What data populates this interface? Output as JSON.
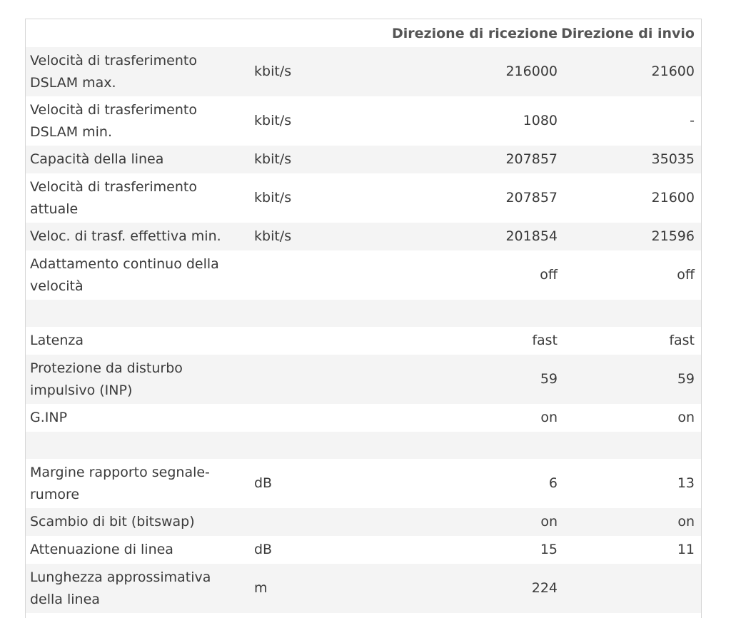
{
  "header": {
    "rx_label": "Direzione di ricezione",
    "tx_label": "Direzione di invio"
  },
  "rows": [
    {
      "label": "Velocità di trasferimento DSLAM max.",
      "unit": "kbit/s",
      "rx": "216000",
      "tx": "21600"
    },
    {
      "label": "Velocità di trasferimento DSLAM min.",
      "unit": "kbit/s",
      "rx": "1080",
      "tx": "-"
    },
    {
      "label": "Capacità della linea",
      "unit": "kbit/s",
      "rx": "207857",
      "tx": "35035"
    },
    {
      "label": "Velocità di trasferimento attuale",
      "unit": "kbit/s",
      "rx": "207857",
      "tx": "21600"
    },
    {
      "label": "Veloc. di trasf. effettiva min.",
      "unit": "kbit/s",
      "rx": "201854",
      "tx": "21596"
    },
    {
      "label": "Adattamento continuo della velocità",
      "unit": "",
      "rx": "off",
      "tx": "off"
    },
    {
      "label": "Latenza",
      "unit": "",
      "rx": "fast",
      "tx": "fast"
    },
    {
      "label": "Protezione da disturbo impulsivo (INP)",
      "unit": "",
      "rx": "59",
      "tx": "59"
    },
    {
      "label": "G.INP",
      "unit": "",
      "rx": "on",
      "tx": "on"
    },
    {
      "label": "Margine rapporto segnale-rumore",
      "unit": "dB",
      "rx": "6",
      "tx": "13"
    },
    {
      "label": "Scambio di bit (bitswap)",
      "unit": "",
      "rx": "on",
      "tx": "on"
    },
    {
      "label": "Attenuazione di linea",
      "unit": "dB",
      "rx": "15",
      "tx": "11"
    },
    {
      "label": "Lunghezza approssimativa della linea",
      "unit": "m",
      "rx": "224",
      "tx": ""
    }
  ]
}
